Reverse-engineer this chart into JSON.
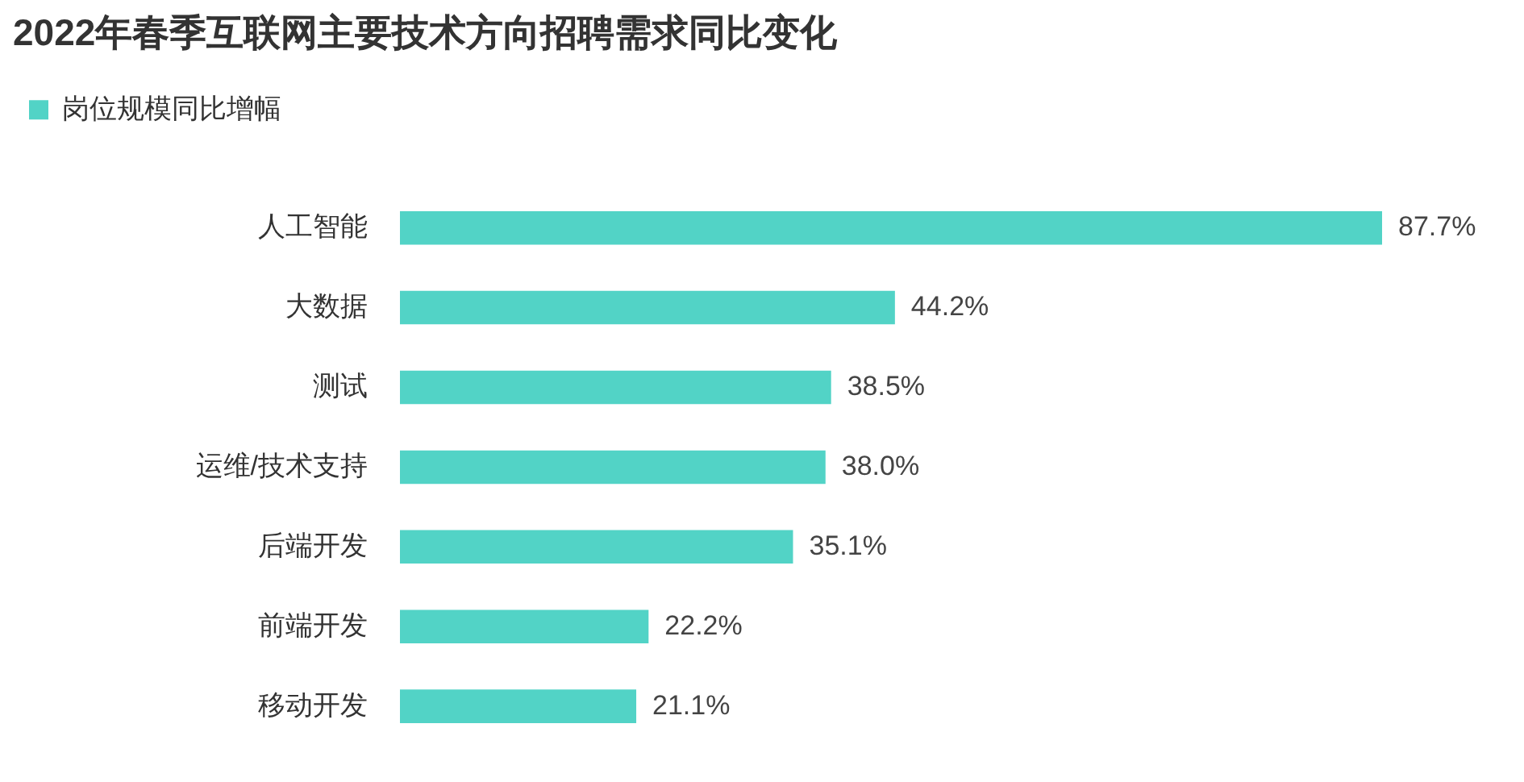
{
  "chart_data": {
    "type": "bar",
    "orientation": "horizontal",
    "title": "2022年春季互联网主要技术方向招聘需求同比变化",
    "categories": [
      "人工智能",
      "大数据",
      "测试",
      "运维/技术支持",
      "后端开发",
      "前端开发",
      "移动开发"
    ],
    "series": [
      {
        "name": "岗位规模同比增幅",
        "color": "#52d3c6",
        "values": [
          87.7,
          44.2,
          38.5,
          38.0,
          35.1,
          22.2,
          21.1
        ],
        "value_labels": [
          "87.7%",
          "44.2%",
          "38.5%",
          "38.0%",
          "35.1%",
          "22.2%",
          "21.1%"
        ]
      }
    ],
    "legend": "top left",
    "tick_labels": "y"
  }
}
